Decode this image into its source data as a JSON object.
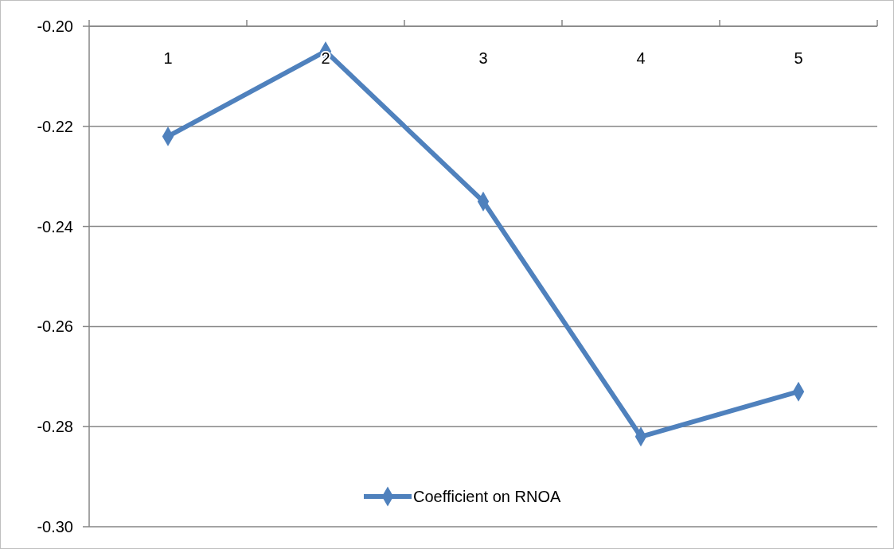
{
  "chart_data": {
    "type": "line",
    "categories": [
      "1",
      "2",
      "3",
      "4",
      "5"
    ],
    "series": [
      {
        "name": "Coefficient on RNOA",
        "color": "#4f81bd",
        "values": [
          -0.222,
          -0.205,
          -0.235,
          -0.282,
          -0.273
        ]
      }
    ],
    "ylim": [
      -0.3,
      -0.2
    ],
    "yticks": [
      {
        "value": -0.3,
        "label": "-0.30"
      },
      -0.28,
      -0.26,
      -0.24,
      -0.22,
      {
        "value": -0.2,
        "label": "-0.20"
      }
    ],
    "grid": "y",
    "legend": "bottom",
    "marker": "diamond",
    "line_style": "solid"
  }
}
